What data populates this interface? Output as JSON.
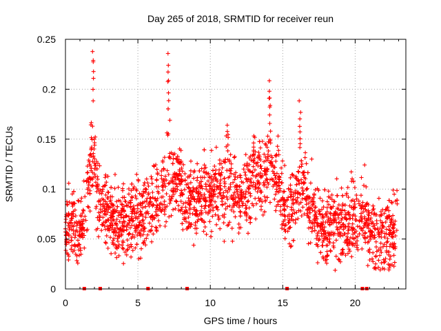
{
  "chart_data": {
    "type": "scatter",
    "title": "Day 265 of 2018, SRMTID for receiver reun",
    "xlabel": "GPS time / hours",
    "ylabel": "SRMTID / TECUs",
    "xlim": [
      0,
      23.5
    ],
    "ylim": [
      0,
      0.25
    ],
    "xticks": [
      0,
      5,
      10,
      15,
      20
    ],
    "xtick_labels": [
      "0",
      "5",
      "10",
      "15",
      "20"
    ],
    "yticks": [
      0,
      0.05,
      0.1,
      0.15,
      0.2,
      0.25
    ],
    "ytick_labels": [
      "0",
      "0.05",
      "0.1",
      "0.15",
      "0.2",
      "0.25"
    ],
    "grid": true,
    "marker": "plus",
    "series": [
      {
        "name": "SRMTID",
        "color": "#ff0000",
        "point_count": 2400
      }
    ],
    "trend": [
      [
        0.0,
        0.058
      ],
      [
        0.5,
        0.07
      ],
      [
        0.8,
        0.045
      ],
      [
        1.2,
        0.065
      ],
      [
        1.5,
        0.095
      ],
      [
        1.9,
        0.12
      ],
      [
        2.3,
        0.085
      ],
      [
        3.0,
        0.072
      ],
      [
        4.0,
        0.065
      ],
      [
        5.0,
        0.075
      ],
      [
        6.0,
        0.085
      ],
      [
        7.0,
        0.1
      ],
      [
        7.5,
        0.115
      ],
      [
        8.5,
        0.088
      ],
      [
        9.5,
        0.09
      ],
      [
        10.5,
        0.1
      ],
      [
        11.5,
        0.095
      ],
      [
        12.5,
        0.1
      ],
      [
        13.5,
        0.11
      ],
      [
        14.2,
        0.118
      ],
      [
        14.8,
        0.1
      ],
      [
        15.3,
        0.08
      ],
      [
        16.0,
        0.095
      ],
      [
        16.5,
        0.1
      ],
      [
        17.0,
        0.075
      ],
      [
        18.0,
        0.06
      ],
      [
        19.0,
        0.062
      ],
      [
        20.0,
        0.07
      ],
      [
        20.5,
        0.075
      ],
      [
        21.0,
        0.06
      ],
      [
        21.5,
        0.05
      ],
      [
        22.3,
        0.055
      ],
      [
        22.8,
        0.06
      ]
    ],
    "peaks": [
      {
        "x": 1.9,
        "y": 0.24,
        "width": 0.18
      },
      {
        "x": 7.1,
        "y": 0.237,
        "width": 0.18
      },
      {
        "x": 14.1,
        "y": 0.21,
        "width": 0.2
      },
      {
        "x": 16.2,
        "y": 0.18,
        "width": 0.2
      },
      {
        "x": 11.2,
        "y": 0.165,
        "width": 0.3
      },
      {
        "x": 13.0,
        "y": 0.155,
        "width": 0.3
      }
    ],
    "zero_markers": [
      1.3,
      2.4,
      5.7,
      8.4,
      15.3,
      20.5,
      20.8
    ]
  }
}
